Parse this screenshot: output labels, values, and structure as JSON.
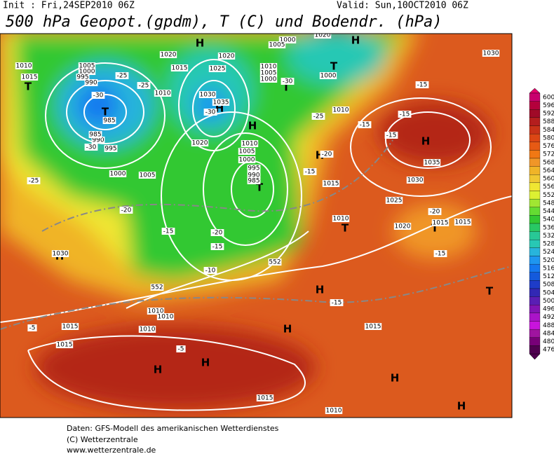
{
  "header": {
    "init": "Init : Fri,24SEP2010 06Z",
    "valid": "Valid: Sun,10OCT2010 06Z",
    "title": "500 hPa Geopot.(gpdm), T (C) und Bodendr. (hPa)"
  },
  "map": {
    "labels": [
      "T",
      "T",
      "H",
      "H",
      "T",
      "T",
      "H",
      "H",
      "H",
      "H",
      "T",
      "T",
      "H",
      "H",
      "H",
      "H",
      "H",
      "H",
      "H",
      "T",
      "T",
      "1015",
      "1010",
      "1005",
      "1000",
      "995",
      "990",
      "985",
      "1020",
      "1015",
      "1010",
      "1020",
      "1025",
      "1030",
      "1035",
      "1010",
      "1005",
      "1000",
      "1000",
      "1020",
      "1010",
      "1005",
      "1000",
      "995",
      "990",
      "985",
      "1005",
      "1000",
      "995",
      "990",
      "985",
      "1000",
      "1005",
      "1010",
      "1015",
      "1015",
      "1030",
      "1035",
      "1030",
      "1025",
      "1020",
      "1015",
      "1015",
      "1015",
      "1010",
      "1015",
      "1015",
      "1010",
      "1010",
      "1010",
      "1030",
      "1010",
      "1020",
      "-30",
      "-25",
      "-25",
      "-30",
      "-30",
      "-25",
      "-15",
      "-15",
      "-15",
      "-15",
      "-20",
      "-15",
      "-20",
      "-15",
      "-10",
      "-5",
      "-5",
      "-15",
      "-20",
      "-15",
      "-30",
      "-25",
      "-15",
      "-20",
      "552",
      "552"
    ]
  },
  "legend": {
    "values": [
      600,
      596,
      592,
      588,
      584,
      580,
      576,
      572,
      568,
      564,
      560,
      556,
      552,
      548,
      544,
      540,
      536,
      532,
      528,
      524,
      520,
      516,
      512,
      508,
      504,
      500,
      496,
      492,
      488,
      484,
      480,
      476
    ],
    "colors": [
      "#c8006e",
      "#b4003c",
      "#a00a28",
      "#b41e1e",
      "#c83218",
      "#dc4614",
      "#e65a14",
      "#f07814",
      "#f09628",
      "#f0b428",
      "#f0c832",
      "#f0e632",
      "#dcf032",
      "#a0e632",
      "#64dc32",
      "#32c832",
      "#28c864",
      "#28c896",
      "#28c8b4",
      "#28b4dc",
      "#1e96f0",
      "#1478f0",
      "#145adc",
      "#1e3cc8",
      "#3228b4",
      "#5a1eb4",
      "#8214b4",
      "#aa14c8",
      "#c814dc",
      "#a014a0",
      "#780078",
      "#500050"
    ]
  },
  "footer": {
    "lines": [
      "Daten: GFS-Modell des amerikanischen Wetterdienstes",
      "(C) Wetterzentrale",
      "www.wetterzentrale.de"
    ]
  }
}
